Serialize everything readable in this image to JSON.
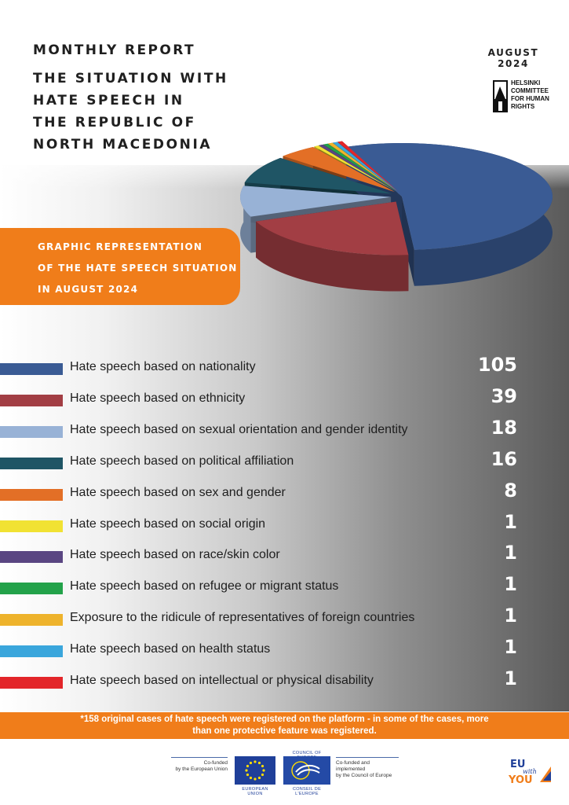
{
  "header": {
    "kicker": "MONTHLY REPORT",
    "title_lines": [
      "THE SITUATION WITH",
      "HATE SPEECH IN",
      "THE REPUBLIC OF",
      "NORTH MACEDONIA"
    ],
    "month": "AUGUST",
    "year": "2024",
    "org_logo_lines": [
      "HELSINKI",
      "COMMITTEE",
      "FOR HUMAN",
      "RIGHTS"
    ]
  },
  "banner": {
    "lines": [
      "GRAPHIC REPRESENTATION",
      "OF THE HATE SPEECH SITUATION",
      "IN AUGUST 2024"
    ]
  },
  "colors": {
    "accent": "#f07d1a"
  },
  "chart_data": {
    "type": "pie",
    "categories": [
      "Hate speech based on nationality",
      "Hate speech based on ethnicity",
      "Hate speech based on sexual orientation and gender identity",
      "Hate speech based on political affiliation",
      "Hate speech based on sex and gender",
      "Hate speech based on social origin",
      "Hate speech based on race/skin color",
      "Hate speech based on refugee or migrant status",
      "Exposure to the ridicule of representatives of foreign countries",
      "Hate speech based on health status",
      "Hate speech based on intellectual or physical disability"
    ],
    "values": [
      105,
      39,
      18,
      16,
      8,
      1,
      1,
      1,
      1,
      1,
      1
    ],
    "colors": [
      "#3a5b94",
      "#a23e44",
      "#98b2d6",
      "#1f5565",
      "#e36f26",
      "#f1e233",
      "#5a4682",
      "#23a24a",
      "#eeb32c",
      "#3aa6dc",
      "#e3262a"
    ],
    "legend": "below",
    "title": ""
  },
  "footnote": {
    "lines": [
      "*158 original cases of hate speech were registered on the platform - in some of the cases, more",
      "than one protective feature was registered."
    ]
  },
  "funders": {
    "eu_text_lines": [
      "Co-funded",
      "by the European Union"
    ],
    "eu_caption": "EUROPEAN UNION",
    "coe_top_caption": "COUNCIL OF EUROPE",
    "coe_caption": "CONSEIL DE L'EUROPE",
    "coe_text_lines": [
      "Co-funded and implemented",
      "by the Council of Europe"
    ],
    "campaign": [
      "EU",
      "with",
      "YOU"
    ]
  }
}
